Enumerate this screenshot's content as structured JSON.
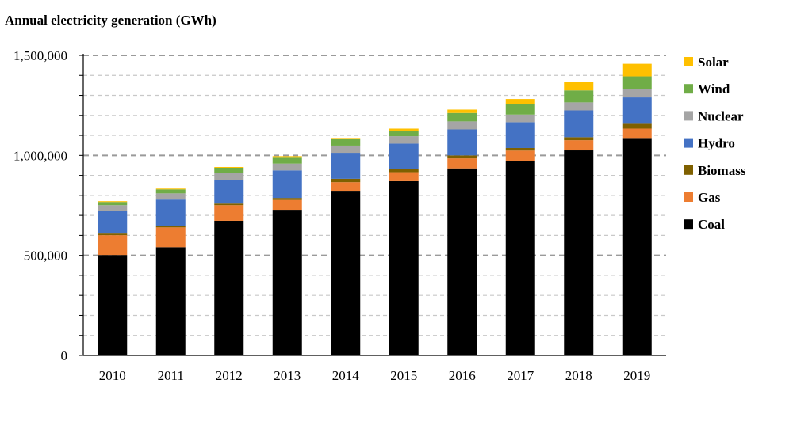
{
  "chart_data": {
    "type": "bar",
    "stacked": true,
    "title": "Annual electricity generation (GWh)",
    "xlabel": "",
    "ylabel": "",
    "ylim": [
      0,
      1500000
    ],
    "yticks": [
      0,
      500000,
      1000000,
      1500000
    ],
    "ytick_labels": [
      "0",
      "500,000",
      "1,000,000",
      "1,500,000"
    ],
    "grid": true,
    "legend_position": "right",
    "categories": [
      "2010",
      "2011",
      "2012",
      "2013",
      "2014",
      "2015",
      "2016",
      "2017",
      "2018",
      "2019"
    ],
    "series": [
      {
        "name": "Coal",
        "color": "#000000",
        "values": [
          502000,
          541000,
          673000,
          728000,
          823000,
          871000,
          935000,
          973000,
          1025000,
          1087000
        ]
      },
      {
        "name": "Gas",
        "color": "#ED7D31",
        "values": [
          99000,
          99000,
          78000,
          49000,
          43000,
          45000,
          50000,
          51000,
          51000,
          47000
        ]
      },
      {
        "name": "Biomass",
        "color": "#7F6000",
        "values": [
          8000,
          8000,
          8000,
          10000,
          17000,
          15000,
          15000,
          13000,
          15000,
          24000
        ]
      },
      {
        "name": "Hydro",
        "color": "#4472C4",
        "values": [
          114000,
          131000,
          118000,
          138000,
          130000,
          128000,
          130000,
          129000,
          134000,
          132000
        ]
      },
      {
        "name": "Nuclear",
        "color": "#A5A5A5",
        "values": [
          28000,
          31000,
          34000,
          34000,
          36000,
          37000,
          40000,
          38000,
          40000,
          42000
        ]
      },
      {
        "name": "Wind",
        "color": "#70AD47",
        "values": [
          16000,
          20000,
          27000,
          29000,
          33000,
          28000,
          42000,
          52000,
          60000,
          63000
        ]
      },
      {
        "name": "Solar",
        "color": "#FFC000",
        "values": [
          4000,
          4000,
          4000,
          8000,
          5000,
          10000,
          17000,
          26000,
          43000,
          63000
        ]
      }
    ]
  }
}
